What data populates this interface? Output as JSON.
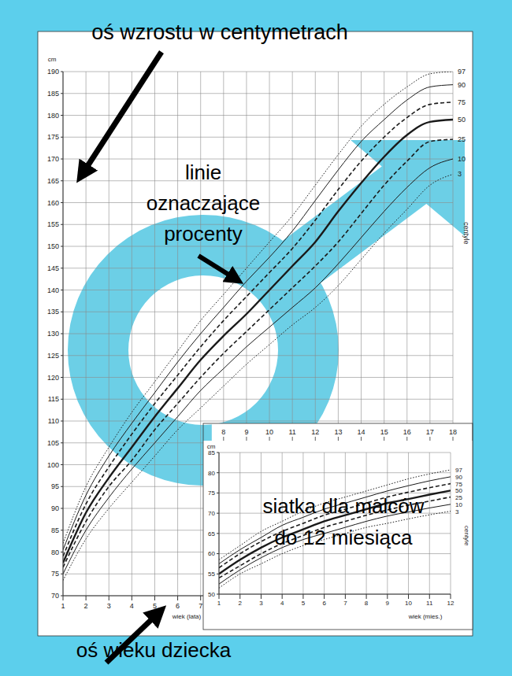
{
  "chart_data": [
    {
      "type": "line",
      "x_label": "wiek (lata)",
      "y_label": "cm",
      "side_label": "centyle",
      "x": [
        1,
        2,
        3,
        4,
        5,
        6,
        7,
        8,
        9,
        10,
        11,
        12,
        13,
        14,
        15,
        16,
        17,
        18
      ],
      "xlim": [
        1,
        18
      ],
      "xticks": [
        1,
        2,
        3,
        4,
        5,
        6,
        7,
        8,
        9,
        10,
        11,
        12,
        13,
        14,
        15,
        16,
        17,
        18
      ],
      "ylim": [
        70,
        190
      ],
      "yticks": [
        70,
        75,
        80,
        85,
        90,
        95,
        100,
        105,
        110,
        115,
        120,
        125,
        130,
        135,
        140,
        145,
        150,
        155,
        160,
        165,
        170,
        175,
        180,
        185,
        190
      ],
      "grid": true,
      "series": [
        {
          "name": "97",
          "color": "#1a1a1a",
          "line_style": "dotted",
          "values": [
            82,
            95,
            104,
            112,
            119,
            126,
            133,
            139,
            145,
            151,
            157,
            164,
            171,
            177.5,
            182.5,
            186.5,
            189.5,
            190
          ]
        },
        {
          "name": "90",
          "color": "#1a1a1a",
          "line_style": "solid",
          "values": [
            80.5,
            93,
            102,
            109.5,
            116.5,
            123.5,
            130,
            136,
            142,
            147.5,
            153.5,
            160.5,
            167.5,
            174,
            179,
            183.5,
            186.5,
            187
          ]
        },
        {
          "name": "75",
          "color": "#1a1a1a",
          "line_style": "dashed",
          "values": [
            79,
            91,
            99.5,
            107,
            114,
            120.5,
            127,
            133,
            138.5,
            144,
            149.5,
            156,
            163,
            169.5,
            175,
            179.5,
            182.5,
            183
          ]
        },
        {
          "name": "50",
          "color": "#1a1a1a",
          "line_style": "bold",
          "values": [
            77.5,
            89,
            97,
            104,
            111,
            117.5,
            124,
            129.5,
            134.5,
            140,
            145.5,
            151,
            158,
            164.5,
            170.5,
            175.5,
            178.5,
            179
          ]
        },
        {
          "name": "25",
          "color": "#1a1a1a",
          "line_style": "dashed",
          "values": [
            76.5,
            87,
            95,
            101,
            108,
            114,
            120,
            125.5,
            130.5,
            135.5,
            140.5,
            145.5,
            151,
            157.5,
            164,
            169.5,
            174,
            174.5
          ]
        },
        {
          "name": "10",
          "color": "#1a1a1a",
          "line_style": "solid",
          "values": [
            75,
            85,
            92.5,
            99,
            105,
            111,
            117,
            122,
            127,
            131.5,
            136,
            140.5,
            146,
            152,
            158,
            163.5,
            168,
            170
          ]
        },
        {
          "name": "3",
          "color": "#1a1a1a",
          "line_style": "dotted",
          "values": [
            73.5,
            83,
            90,
            96,
            102,
            108,
            113,
            118,
            123,
            127.5,
            132,
            136,
            141,
            147,
            153,
            158.5,
            164,
            166.5
          ]
        }
      ],
      "annotations": [
        [
          "oś wzrostu w centymetrach"
        ],
        [
          "linie",
          "oznaczające",
          "procenty"
        ],
        [
          "oś wieku dziecka"
        ]
      ]
    },
    {
      "type": "line",
      "x_label": "wiek (mies.)",
      "y_label": "cm",
      "side_label": "centyle",
      "x": [
        1,
        2,
        3,
        4,
        5,
        6,
        7,
        8,
        9,
        10,
        11,
        12
      ],
      "xlim": [
        1,
        12
      ],
      "xticks": [
        1,
        2,
        3,
        4,
        5,
        6,
        7,
        8,
        9,
        10,
        11,
        12
      ],
      "ylim": [
        50,
        85
      ],
      "yticks": [
        50,
        55,
        60,
        65,
        70,
        75,
        80,
        85
      ],
      "grid": true,
      "series": [
        {
          "name": "97",
          "color": "#1a1a1a",
          "line_style": "dotted",
          "values": [
            58.5,
            62,
            65.5,
            68,
            70.5,
            72.5,
            74,
            75.5,
            77,
            78.5,
            79.7,
            80.7
          ]
        },
        {
          "name": "90",
          "color": "#1a1a1a",
          "line_style": "solid",
          "values": [
            57.5,
            61,
            64,
            67,
            69,
            71,
            72.5,
            74,
            75.5,
            76.8,
            78,
            79
          ]
        },
        {
          "name": "75",
          "color": "#1a1a1a",
          "line_style": "dashed",
          "values": [
            56.5,
            60,
            63,
            65.5,
            67.5,
            69.5,
            71,
            72.5,
            74,
            75.2,
            76.3,
            77.3
          ]
        },
        {
          "name": "50",
          "color": "#1a1a1a",
          "line_style": "bold",
          "values": [
            55,
            58.5,
            61.5,
            64,
            66,
            68,
            69.5,
            71,
            72.5,
            73.5,
            74.6,
            75.6
          ]
        },
        {
          "name": "25",
          "color": "#1a1a1a",
          "line_style": "dashed",
          "values": [
            54,
            57,
            60,
            62.5,
            64.5,
            66.5,
            68,
            69.5,
            70.8,
            72,
            73,
            74
          ]
        },
        {
          "name": "10",
          "color": "#1a1a1a",
          "line_style": "solid",
          "values": [
            52.5,
            56,
            59,
            61.5,
            63.5,
            65,
            66.5,
            68,
            69.3,
            70.3,
            71.3,
            72.2
          ]
        },
        {
          "name": "3",
          "color": "#1a1a1a",
          "line_style": "dotted",
          "values": [
            51.5,
            55,
            57.5,
            60,
            62,
            63.5,
            65,
            66.5,
            67.5,
            68.6,
            69.6,
            70.5
          ]
        }
      ],
      "annotations": [
        [
          "siatka dla malców",
          "do 12 miesiąca"
        ]
      ]
    }
  ]
}
